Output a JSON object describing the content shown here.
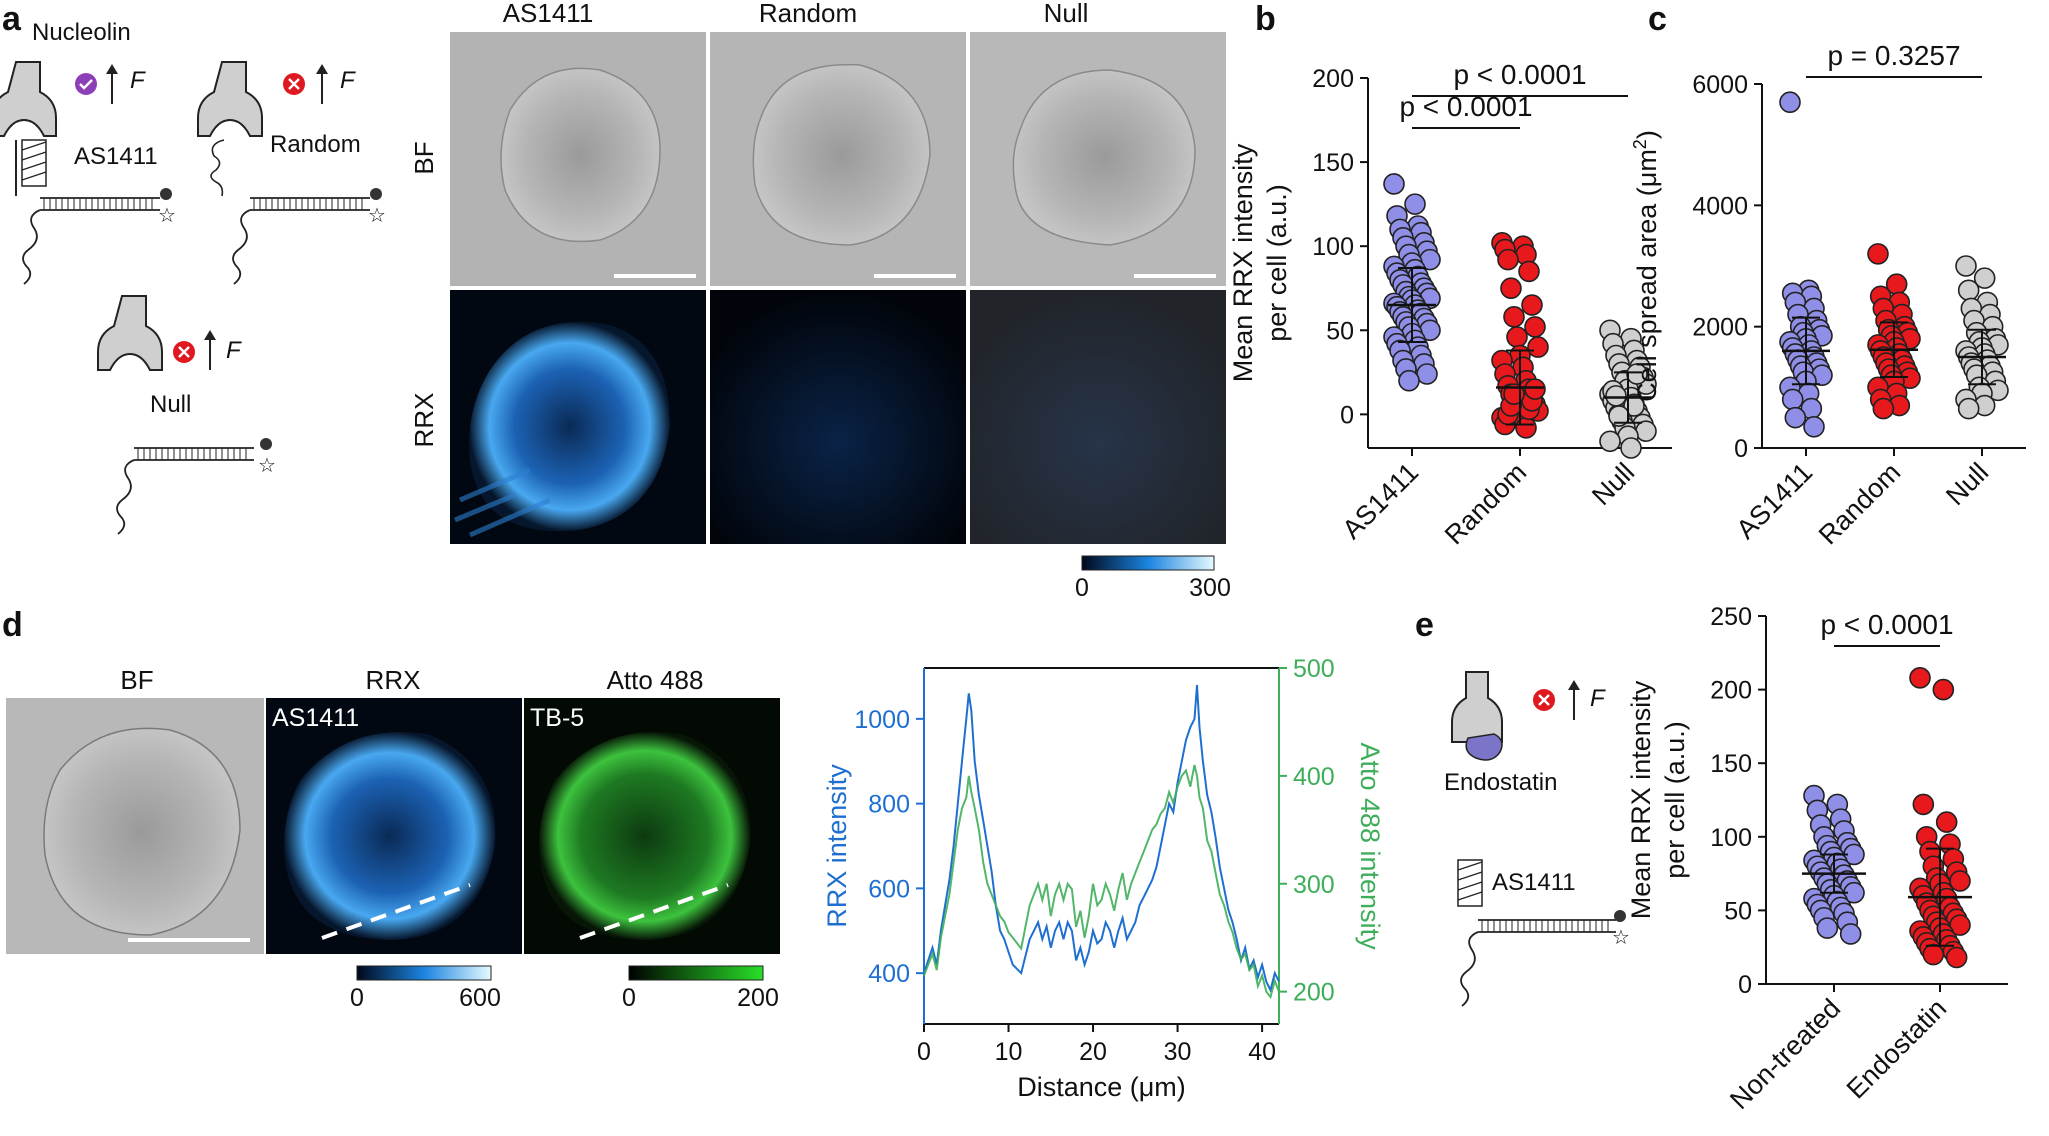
{
  "panels": {
    "a": {
      "label": "a",
      "schematic": {
        "nucleolin": "Nucleolin",
        "as1411": "AS1411",
        "random": "Random",
        "null": "Null",
        "force": "F"
      },
      "columns": [
        "AS1411",
        "Random",
        "Null"
      ],
      "rows": [
        "BF",
        "RRX"
      ],
      "colorbar": {
        "min": "0",
        "max": "300"
      }
    },
    "b": {
      "label": "b"
    },
    "c": {
      "label": "c"
    },
    "d": {
      "label": "d",
      "titles": [
        "BF",
        "RRX",
        "Atto 488"
      ],
      "insets": [
        "AS1411",
        "TB-5"
      ],
      "colorbar_rrx": {
        "min": "0",
        "max": "600"
      },
      "colorbar_atto": {
        "min": "0",
        "max": "200"
      }
    },
    "e": {
      "label": "e",
      "schematic": {
        "endostatin": "Endostatin",
        "as1411": "AS1411",
        "force": "F"
      }
    }
  },
  "chart_data": [
    {
      "id": "b",
      "type": "scatter",
      "ylabel_line1": "Mean RRX intensity",
      "ylabel_line2": "per cell (a.u.)",
      "ylim": [
        -20,
        200
      ],
      "yticks": [
        "0",
        "50",
        "100",
        "150",
        "200"
      ],
      "categories": [
        "AS1411",
        "Random",
        "Null"
      ],
      "colors": [
        "#8f8fe8",
        "#e8191c",
        "#cfcfcf"
      ],
      "means": [
        65,
        16,
        10
      ],
      "sd": [
        22,
        22,
        15
      ],
      "series": [
        {
          "values": [
            137,
            125,
            118,
            112,
            110,
            108,
            105,
            102,
            100,
            97,
            95,
            92,
            90,
            88,
            86,
            84,
            82,
            80,
            78,
            77,
            75,
            73,
            72,
            70,
            69,
            68,
            66,
            65,
            64,
            62,
            61,
            60,
            58,
            57,
            55,
            54,
            52,
            50,
            48,
            46,
            44,
            42,
            40,
            38,
            35,
            32,
            30,
            27,
            24,
            20
          ]
        },
        {
          "values": [
            102,
            100,
            98,
            95,
            92,
            85,
            75,
            65,
            58,
            52,
            46,
            40,
            35,
            32,
            28,
            24,
            20,
            17,
            15,
            12,
            10,
            8,
            6,
            4,
            2,
            0,
            -2,
            -4,
            -6,
            -8,
            0,
            3,
            5,
            8,
            12,
            15
          ]
        },
        {
          "values": [
            50,
            45,
            42,
            38,
            35,
            32,
            30,
            28,
            25,
            22,
            20,
            18,
            15,
            12,
            10,
            8,
            6,
            4,
            2,
            0,
            -2,
            -4,
            -6,
            -8,
            -10,
            -13,
            -16,
            -20,
            14,
            5,
            11,
            24,
            -1
          ]
        }
      ],
      "comparisons": [
        {
          "from": "AS1411",
          "to": "Random",
          "label": "p < 0.0001"
        },
        {
          "from": "AS1411",
          "to": "Null",
          "label": "p < 0.0001"
        }
      ]
    },
    {
      "id": "c",
      "type": "scatter",
      "ylabel": "Cell spread area (μm",
      "ylabel_sup": "2",
      "ylabel_close": ")",
      "ylim": [
        0,
        6000
      ],
      "yticks": [
        "0",
        "2000",
        "4000",
        "6000"
      ],
      "categories": [
        "AS1411",
        "Random",
        "Null"
      ],
      "colors": [
        "#8f8fe8",
        "#e8191c",
        "#cfcfcf"
      ],
      "means": [
        1600,
        1620,
        1500
      ],
      "sd": [
        550,
        450,
        450
      ],
      "series": [
        {
          "values": [
            5700,
            2600,
            2550,
            2500,
            2400,
            2300,
            2200,
            2100,
            2000,
            1950,
            1900,
            1850,
            1800,
            1750,
            1700,
            1650,
            1600,
            1550,
            1500,
            1450,
            1400,
            1350,
            1300,
            1250,
            1200,
            1100,
            1000,
            900,
            800,
            650,
            500,
            350
          ]
        },
        {
          "values": [
            3200,
            2700,
            2500,
            2400,
            2300,
            2200,
            2100,
            2000,
            1950,
            1900,
            1850,
            1800,
            1750,
            1700,
            1650,
            1600,
            1550,
            1500,
            1450,
            1400,
            1350,
            1300,
            1250,
            1200,
            1150,
            1100,
            1000,
            900,
            800,
            700,
            650
          ]
        },
        {
          "values": [
            3000,
            2800,
            2600,
            2400,
            2300,
            2200,
            2100,
            2000,
            1900,
            1800,
            1750,
            1700,
            1650,
            1600,
            1550,
            1500,
            1450,
            1400,
            1350,
            1300,
            1250,
            1200,
            1100,
            1000,
            950,
            900,
            800,
            700,
            650
          ]
        }
      ],
      "comparisons": [
        {
          "from": "AS1411",
          "to": "Null",
          "label": "p = 0.3257"
        }
      ]
    },
    {
      "id": "d",
      "type": "line",
      "xlabel": "Distance (μm)",
      "ylabel_left": "RRX intensity",
      "ylabel_right": "Atto 488 intensity",
      "xlim": [
        0,
        42
      ],
      "ylim_left": [
        280,
        1120
      ],
      "ylim_right": [
        170,
        500
      ],
      "xticks": [
        "0",
        "10",
        "20",
        "30",
        "40"
      ],
      "yticks_left": [
        "400",
        "600",
        "800",
        "1000"
      ],
      "yticks_right": [
        "200",
        "300",
        "400",
        "500"
      ],
      "colors": {
        "left": "#1f6fd1",
        "right": "#3fae5b"
      },
      "series": [
        {
          "name": "RRX",
          "axis": "left",
          "x": [
            0,
            0.5,
            1,
            1.5,
            2,
            2.5,
            3,
            3.5,
            4,
            4.5,
            5,
            5.3,
            5.6,
            6,
            6.5,
            7,
            7.5,
            8,
            8.5,
            9,
            9.5,
            10,
            10.5,
            11,
            11.5,
            12,
            12.5,
            13,
            13.5,
            14,
            14.5,
            15,
            15.5,
            16,
            16.5,
            17,
            17.5,
            18,
            18.5,
            19,
            19.5,
            20,
            20.5,
            21,
            21.5,
            22,
            22.5,
            23,
            23.5,
            24,
            24.5,
            25,
            25.5,
            26,
            26.5,
            27,
            27.5,
            28,
            28.5,
            29,
            29.5,
            30,
            30.5,
            31,
            31.5,
            32,
            32.3,
            32.6,
            33,
            33.5,
            34,
            34.5,
            35,
            35.5,
            36,
            36.5,
            37,
            37.5,
            38,
            38.5,
            39,
            39.5,
            40,
            40.5,
            41,
            41.5,
            42
          ],
          "values": [
            400,
            430,
            460,
            420,
            500,
            560,
            620,
            700,
            800,
            900,
            1000,
            1060,
            1020,
            900,
            820,
            760,
            700,
            640,
            560,
            500,
            480,
            450,
            420,
            410,
            400,
            440,
            480,
            500,
            520,
            480,
            510,
            460,
            500,
            520,
            480,
            520,
            500,
            430,
            460,
            420,
            450,
            500,
            470,
            480,
            520,
            500,
            460,
            500,
            530,
            480,
            500,
            520,
            560,
            580,
            600,
            620,
            650,
            700,
            750,
            800,
            780,
            850,
            900,
            950,
            980,
            1000,
            1080,
            980,
            900,
            820,
            780,
            720,
            650,
            600,
            550,
            520,
            480,
            430,
            460,
            410,
            430,
            390,
            420,
            380,
            360,
            400,
            380
          ]
        },
        {
          "name": "Atto 488",
          "axis": "right",
          "x": [
            0,
            0.5,
            1,
            1.5,
            2,
            2.5,
            3,
            3.5,
            4,
            4.5,
            5,
            5.3,
            5.6,
            6,
            6.5,
            7,
            7.5,
            8,
            8.5,
            9,
            9.5,
            10,
            10.5,
            11,
            11.5,
            12,
            12.5,
            13,
            13.5,
            14,
            14.5,
            15,
            15.5,
            16,
            16.5,
            17,
            17.5,
            18,
            18.5,
            19,
            19.5,
            20,
            20.5,
            21,
            21.5,
            22,
            22.5,
            23,
            23.5,
            24,
            24.5,
            25,
            25.5,
            26,
            26.5,
            27,
            27.5,
            28,
            28.5,
            29,
            29.5,
            30,
            30.5,
            31,
            31.5,
            32,
            32.3,
            32.6,
            33,
            33.5,
            34,
            34.5,
            35,
            35.5,
            36,
            36.5,
            37,
            37.5,
            38,
            38.5,
            39,
            39.5,
            40,
            40.5,
            41,
            41.5,
            42
          ],
          "values": [
            215,
            225,
            235,
            220,
            250,
            270,
            290,
            320,
            350,
            370,
            380,
            400,
            385,
            370,
            350,
            320,
            300,
            290,
            280,
            270,
            265,
            255,
            250,
            245,
            240,
            260,
            280,
            290,
            300,
            285,
            300,
            270,
            290,
            300,
            285,
            300,
            295,
            260,
            275,
            250,
            270,
            300,
            280,
            285,
            300,
            290,
            275,
            295,
            310,
            285,
            300,
            310,
            320,
            330,
            340,
            350,
            355,
            365,
            370,
            385,
            375,
            390,
            400,
            405,
            390,
            410,
            400,
            380,
            370,
            340,
            330,
            310,
            290,
            280,
            265,
            255,
            240,
            230,
            235,
            220,
            225,
            205,
            215,
            200,
            195,
            210,
            200
          ]
        }
      ]
    },
    {
      "id": "e",
      "type": "scatter",
      "ylabel_line1": "Mean RRX intensity",
      "ylabel_line2": "per cell (a.u.)",
      "ylim": [
        0,
        250
      ],
      "yticks": [
        "0",
        "50",
        "100",
        "150",
        "200",
        "250"
      ],
      "categories": [
        "Non-treated",
        "Endostatin"
      ],
      "colors": [
        "#8f8fe8",
        "#e8191c"
      ],
      "means": [
        75,
        59
      ],
      "sd": [
        13,
        33
      ],
      "series": [
        {
          "values": [
            128,
            122,
            118,
            112,
            108,
            104,
            100,
            96,
            94,
            92,
            90,
            88,
            86,
            84,
            82,
            80,
            78,
            76,
            74,
            72,
            70,
            68,
            66,
            64,
            62,
            60,
            58,
            56,
            54,
            52,
            50,
            48,
            45,
            42,
            38,
            34
          ]
        },
        {
          "values": [
            208,
            200,
            122,
            110,
            100,
            95,
            90,
            85,
            80,
            76,
            72,
            70,
            68,
            65,
            62,
            60,
            58,
            55,
            52,
            50,
            48,
            46,
            44,
            42,
            40,
            38,
            36,
            34,
            32,
            30,
            28,
            26,
            24,
            22,
            20,
            18
          ]
        }
      ],
      "comparisons": [
        {
          "from": "Non-treated",
          "to": "Endostatin",
          "label": "p < 0.0001"
        }
      ]
    }
  ]
}
